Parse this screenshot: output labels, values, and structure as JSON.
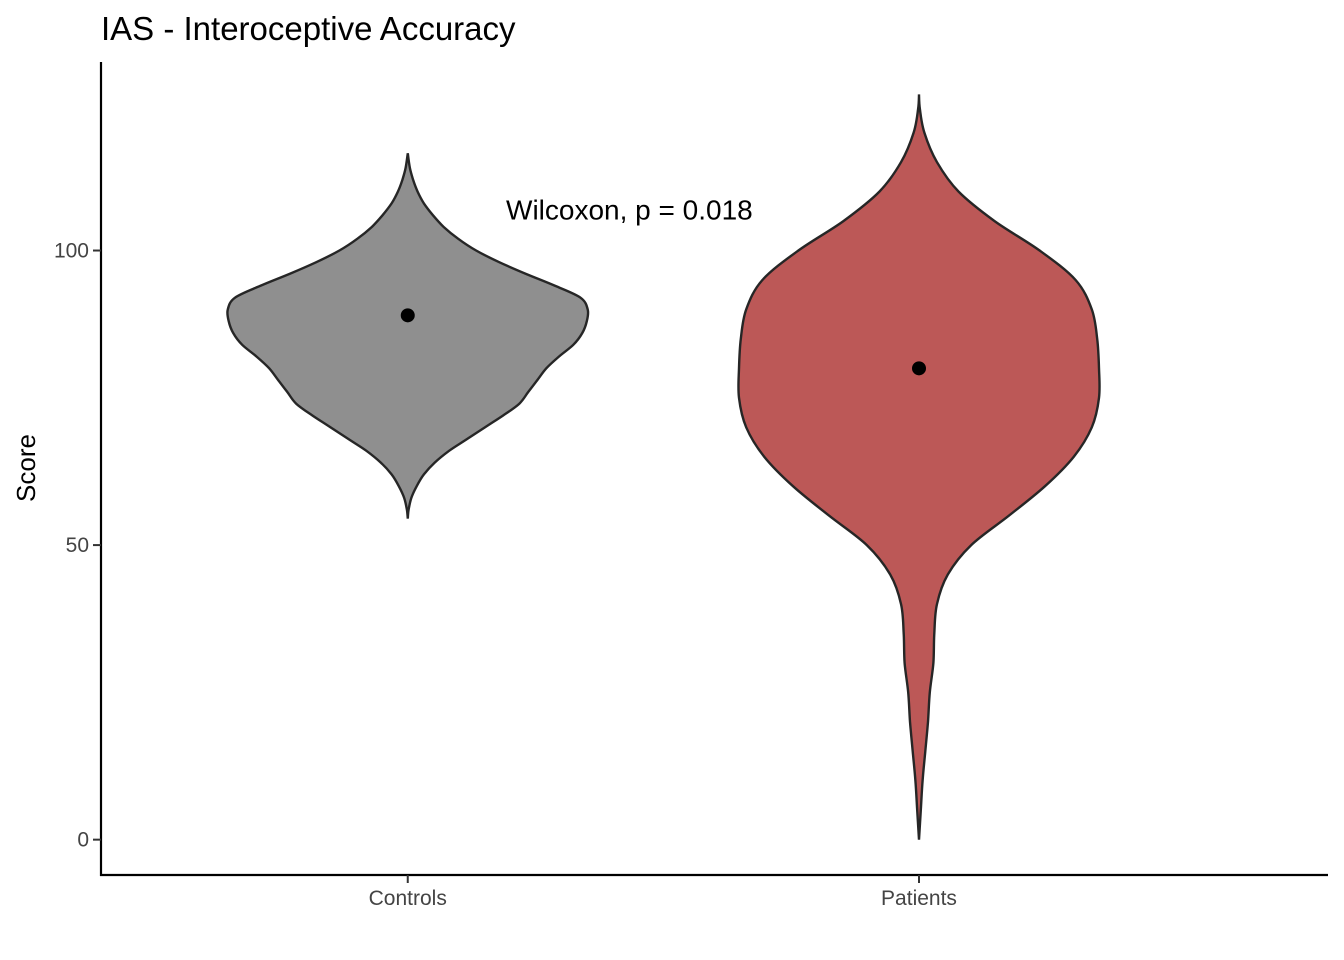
{
  "chart_data": {
    "type": "violin",
    "title": "IAS - Interoceptive Accuracy",
    "xlabel": "",
    "ylabel": "Score",
    "ylim": [
      -6,
      132
    ],
    "yticks": [
      0,
      50,
      100
    ],
    "ytick_labels": [
      "0",
      "50",
      "100"
    ],
    "categories": [
      "Controls",
      "Patients"
    ],
    "grid": false,
    "legend": "none",
    "annotation": {
      "text": "Wilcoxon, p = 0.018",
      "x_between": [
        "Controls",
        "Patients"
      ],
      "y": 107
    },
    "series": [
      {
        "category": "Controls",
        "color": "#8f8f8f",
        "point": 89,
        "min": 54.5,
        "max": 116.5,
        "profile": [
          [
            54.5,
            0.0
          ],
          [
            56,
            0.005
          ],
          [
            58,
            0.02
          ],
          [
            60,
            0.05
          ],
          [
            62,
            0.09
          ],
          [
            64,
            0.15
          ],
          [
            66,
            0.23
          ],
          [
            68,
            0.33
          ],
          [
            70,
            0.43
          ],
          [
            72,
            0.53
          ],
          [
            74,
            0.62
          ],
          [
            76,
            0.67
          ],
          [
            78,
            0.72
          ],
          [
            80,
            0.77
          ],
          [
            82,
            0.84
          ],
          [
            84,
            0.92
          ],
          [
            86,
            0.97
          ],
          [
            88,
            0.995
          ],
          [
            90,
            1.0
          ],
          [
            92,
            0.96
          ],
          [
            94,
            0.82
          ],
          [
            96,
            0.66
          ],
          [
            98,
            0.51
          ],
          [
            100,
            0.38
          ],
          [
            102,
            0.28
          ],
          [
            104,
            0.2
          ],
          [
            106,
            0.14
          ],
          [
            108,
            0.09
          ],
          [
            110,
            0.055
          ],
          [
            112,
            0.03
          ],
          [
            114,
            0.012
          ],
          [
            116.5,
            0.0
          ]
        ]
      },
      {
        "category": "Patients",
        "color": "#bc5857",
        "point": 80,
        "min": 0,
        "max": 126.5,
        "profile": [
          [
            0,
            0.0
          ],
          [
            5,
            0.01
          ],
          [
            10,
            0.02
          ],
          [
            15,
            0.035
          ],
          [
            20,
            0.05
          ],
          [
            25,
            0.06
          ],
          [
            30,
            0.08
          ],
          [
            35,
            0.085
          ],
          [
            40,
            0.1
          ],
          [
            45,
            0.16
          ],
          [
            50,
            0.29
          ],
          [
            55,
            0.5
          ],
          [
            60,
            0.7
          ],
          [
            65,
            0.86
          ],
          [
            70,
            0.96
          ],
          [
            75,
            1.0
          ],
          [
            80,
            1.0
          ],
          [
            85,
            0.99
          ],
          [
            90,
            0.96
          ],
          [
            95,
            0.87
          ],
          [
            100,
            0.67
          ],
          [
            105,
            0.42
          ],
          [
            110,
            0.22
          ],
          [
            115,
            0.1
          ],
          [
            120,
            0.03
          ],
          [
            124,
            0.005
          ],
          [
            126.5,
            0.0
          ]
        ]
      }
    ]
  }
}
